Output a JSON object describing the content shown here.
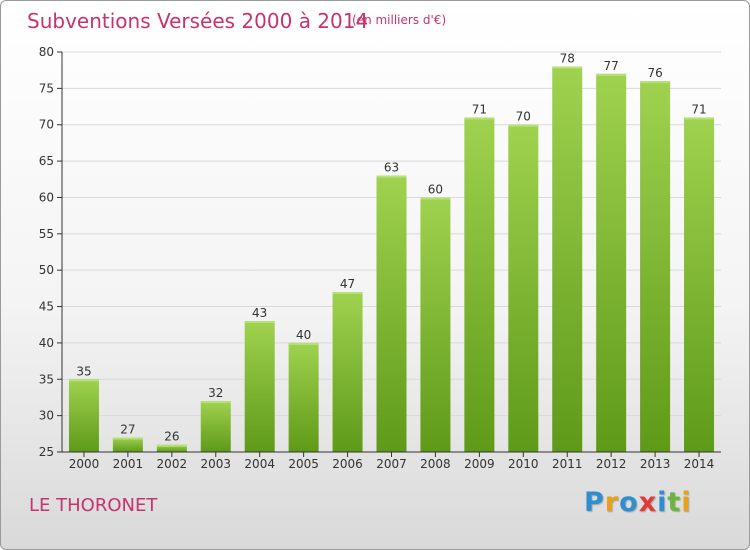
{
  "header": {
    "title": "Subventions Versées 2000 à 2014",
    "subtitle": "(en milliers d'€)"
  },
  "footer": {
    "commune": "LE THORONET",
    "logo_text": "Proxiti"
  },
  "colors": {
    "title": "#c8326e",
    "bar_light": "#9fd24f",
    "bar_dark": "#5e9a18",
    "grid": "#d9d9d9",
    "axis": "#333333"
  },
  "chart_data": {
    "type": "bar",
    "title": "Subventions Versées 2000 à 2014",
    "subtitle": "(en milliers d'€)",
    "xlabel": "",
    "ylabel": "",
    "categories": [
      "2000",
      "2001",
      "2002",
      "2003",
      "2004",
      "2005",
      "2006",
      "2007",
      "2008",
      "2009",
      "2010",
      "2011",
      "2012",
      "2013",
      "2014"
    ],
    "values": [
      35,
      27,
      26,
      32,
      43,
      40,
      47,
      63,
      60,
      71,
      70,
      78,
      77,
      76,
      71
    ],
    "ylim": [
      25,
      80
    ],
    "yticks": [
      25,
      30,
      35,
      40,
      45,
      50,
      55,
      60,
      65,
      70,
      75,
      80
    ],
    "grid": true,
    "legend": "none"
  }
}
